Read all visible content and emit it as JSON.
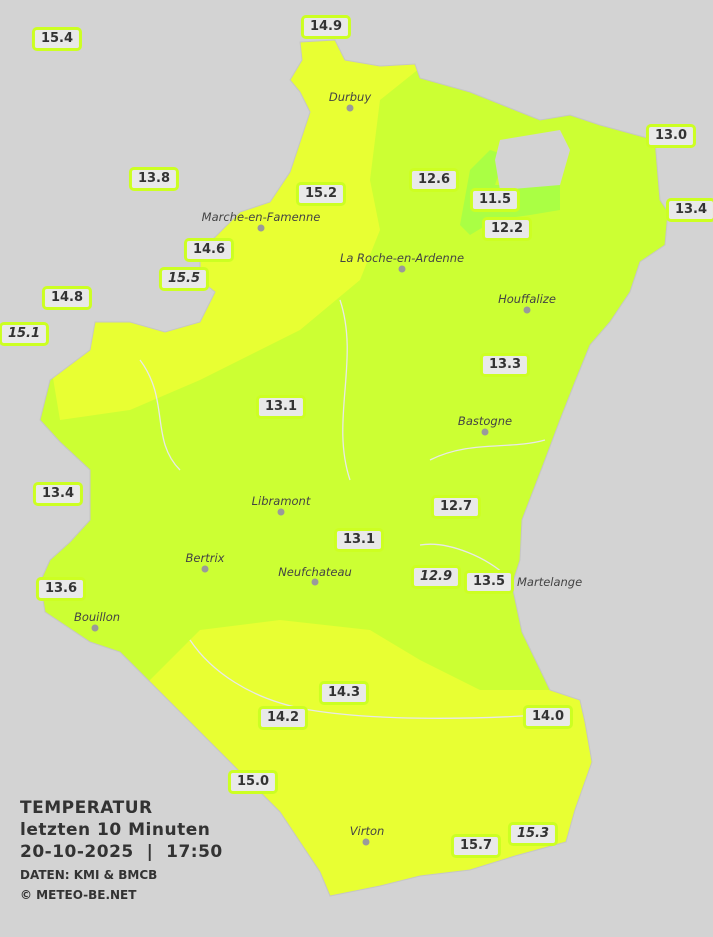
{
  "legend": {
    "title": "TEMPERATUR",
    "subtitle": "letzten 10 Minuten",
    "datetime": "20-10-2025  |  17:50",
    "source": "DATEN: KMI & BMCB",
    "copyright": "© METEO-BE.NET"
  },
  "colors": {
    "background": "#d3d3d3",
    "zone_12_13": "#ccff33",
    "zone_11_12": "#aaff44",
    "zone_14_15": "#e8ff33",
    "label_border": "#ccff22"
  },
  "towns": [
    {
      "name": "Durbuy"
    },
    {
      "name": "Marche-en-Famenne"
    },
    {
      "name": "La Roche-en-Ardenne"
    },
    {
      "name": "Houffalize"
    },
    {
      "name": "Bastogne"
    },
    {
      "name": "Libramont"
    },
    {
      "name": "Bertrix"
    },
    {
      "name": "Neufchateau"
    },
    {
      "name": "Martelange"
    },
    {
      "name": "Bouillon"
    },
    {
      "name": "Virton"
    }
  ],
  "readings": [
    {
      "value": "15.4",
      "italic": false
    },
    {
      "value": "14.9",
      "italic": false
    },
    {
      "value": "13.0",
      "italic": false
    },
    {
      "value": "13.8",
      "italic": false
    },
    {
      "value": "12.6",
      "italic": false
    },
    {
      "value": "15.2",
      "italic": false
    },
    {
      "value": "11.5",
      "italic": false
    },
    {
      "value": "12.2",
      "italic": false
    },
    {
      "value": "13.4",
      "italic": false
    },
    {
      "value": "14.6",
      "italic": false
    },
    {
      "value": "15.5",
      "italic": true
    },
    {
      "value": "14.8",
      "italic": false
    },
    {
      "value": "15.1",
      "italic": true
    },
    {
      "value": "13.3",
      "italic": false
    },
    {
      "value": "13.1",
      "italic": false
    },
    {
      "value": "13.4",
      "italic": false
    },
    {
      "value": "12.7",
      "italic": false
    },
    {
      "value": "13.1",
      "italic": false
    },
    {
      "value": "13.6",
      "italic": false
    },
    {
      "value": "12.9",
      "italic": true
    },
    {
      "value": "13.5",
      "italic": false
    },
    {
      "value": "14.3",
      "italic": false
    },
    {
      "value": "14.2",
      "italic": false
    },
    {
      "value": "14.0",
      "italic": false
    },
    {
      "value": "15.0",
      "italic": false
    },
    {
      "value": "15.7",
      "italic": false
    },
    {
      "value": "15.3",
      "italic": true
    }
  ]
}
